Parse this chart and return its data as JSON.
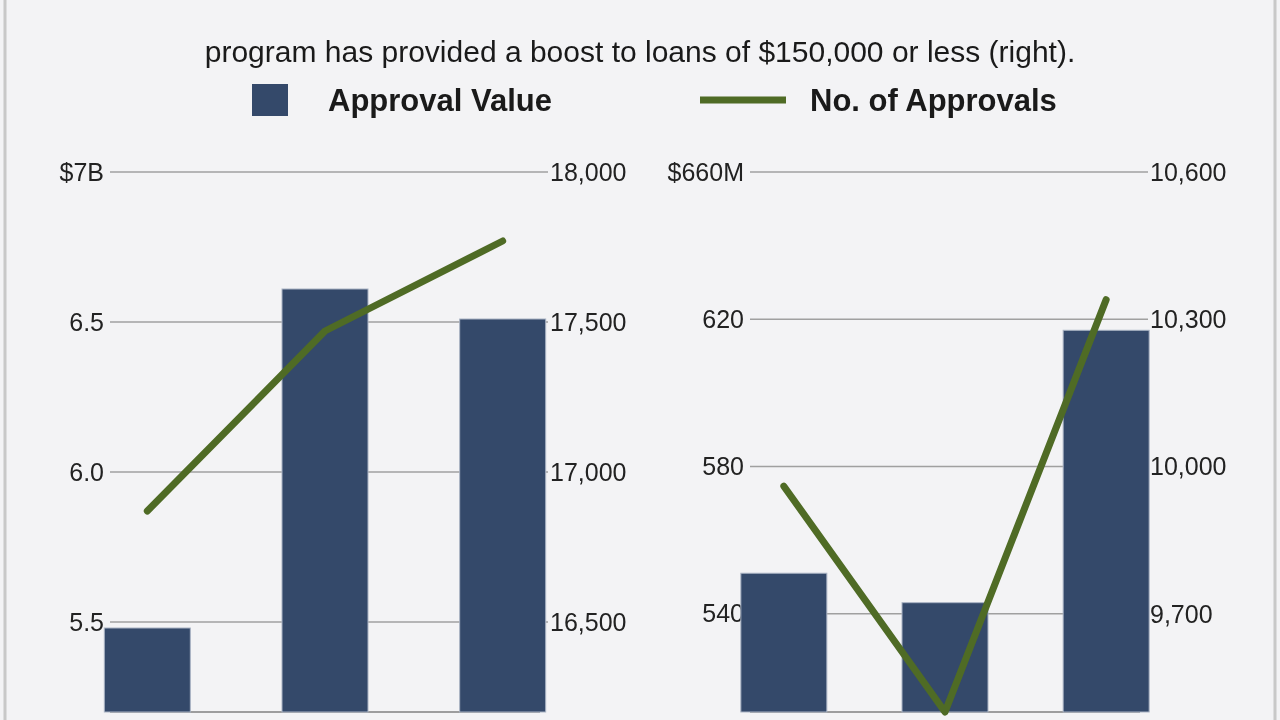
{
  "chart_data": [
    {
      "type": "bar",
      "title": "program has provided a boost to loans of $150,000 or less (right).",
      "categories": [
        null,
        null,
        null
      ],
      "legend": "top",
      "grid": true,
      "series": [
        {
          "name": "Approval Value",
          "color": "#34496a",
          "values": [
            5.48,
            6.61,
            6.51
          ]
        },
        {
          "type": "line",
          "name": "No. of Approvals",
          "color": "#4f6b25",
          "axis": "y2",
          "values": [
            16870,
            17470,
            17770
          ]
        }
      ],
      "ylim": [
        5.2,
        7
      ],
      "yticks": [
        {
          "value": 7,
          "label": "$7B"
        },
        6.5,
        {
          "value": 6,
          "label": "6.0"
        },
        5.5
      ],
      "y2lim": [
        16200,
        18000
      ],
      "y2ticks": [
        {
          "value": 18000,
          "label": "18,000"
        },
        {
          "value": 17500,
          "label": "17,500"
        },
        {
          "value": 17000,
          "label": "17,000"
        },
        {
          "value": 16500,
          "label": "16,500"
        }
      ]
    },
    {
      "type": "bar",
      "categories": [
        null,
        null,
        null
      ],
      "grid": true,
      "series": [
        {
          "color": "#34496a",
          "values": [
            551,
            543,
            617
          ]
        },
        {
          "type": "line",
          "color": "#4f6b25",
          "axis": "y2",
          "values": [
            9960,
            9500,
            10340
          ]
        }
      ],
      "ylim": [
        513.3,
        660
      ],
      "yticks": [
        {
          "value": 660,
          "label": "$660M"
        },
        620,
        580,
        540
      ],
      "y2lim": [
        9500,
        10600
      ],
      "y2ticks": [
        {
          "value": 10600,
          "label": "10,600"
        },
        {
          "value": 10300,
          "label": "10,300"
        },
        {
          "value": 10000,
          "label": "10,000"
        },
        {
          "value": 9700,
          "label": "9,700"
        }
      ]
    }
  ]
}
